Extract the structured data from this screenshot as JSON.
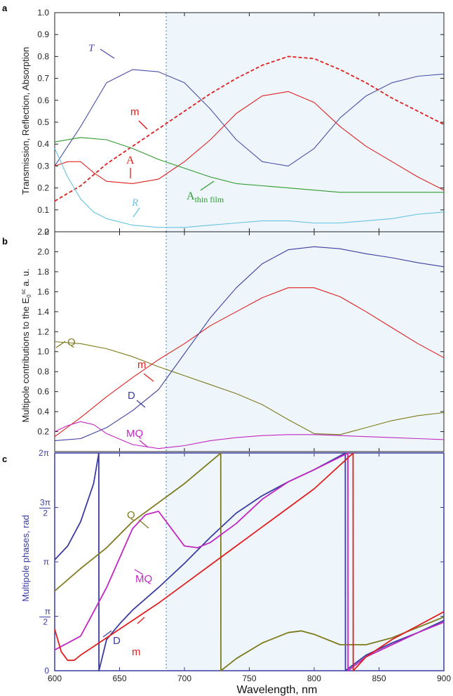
{
  "figure": {
    "x_ticks": [
      "600",
      "650",
      "700",
      "750",
      "800",
      "850",
      "900"
    ],
    "xlabel": "Wavelength, nm",
    "highlight_start": 686,
    "highlight_color": "#eef6fb",
    "marker_color": "#6aa8d8"
  },
  "chart_data": [
    {
      "panel": "a",
      "type": "line",
      "ylabel": "Transmission, Reflection, Absorption",
      "xlim": [
        600,
        900
      ],
      "ylim": [
        0,
        1.0
      ],
      "y_ticks": [
        "0",
        "0.1",
        "0.2",
        "0.3",
        "0.4",
        "0.5",
        "0.6",
        "0.7",
        "0.8",
        "0.9",
        "1.0"
      ],
      "y_tick_values": [
        0,
        0.1,
        0.2,
        0.3,
        0.4,
        0.5,
        0.6,
        0.7,
        0.8,
        0.9,
        1.0
      ],
      "series": [
        {
          "name": "T",
          "color": "#4a4fa8",
          "dash": false,
          "x": [
            600,
            620,
            640,
            660,
            680,
            700,
            720,
            740,
            760,
            780,
            800,
            820,
            840,
            860,
            880,
            900
          ],
          "y": [
            0.3,
            0.48,
            0.68,
            0.74,
            0.73,
            0.68,
            0.56,
            0.42,
            0.32,
            0.3,
            0.38,
            0.52,
            0.62,
            0.68,
            0.71,
            0.72
          ]
        },
        {
          "name": "m",
          "color": "#e02020",
          "dash": true,
          "x": [
            600,
            620,
            640,
            660,
            680,
            700,
            720,
            740,
            760,
            780,
            800,
            820,
            840,
            860,
            880,
            900
          ],
          "y": [
            0.14,
            0.21,
            0.31,
            0.39,
            0.47,
            0.55,
            0.63,
            0.7,
            0.76,
            0.8,
            0.79,
            0.74,
            0.68,
            0.61,
            0.55,
            0.49
          ]
        },
        {
          "name": "A",
          "color": "#e02020",
          "dash": false,
          "x": [
            600,
            610,
            620,
            630,
            640,
            660,
            680,
            700,
            720,
            740,
            760,
            780,
            800,
            820,
            840,
            860,
            880,
            900
          ],
          "y": [
            0.3,
            0.32,
            0.32,
            0.27,
            0.23,
            0.22,
            0.24,
            0.32,
            0.42,
            0.54,
            0.62,
            0.64,
            0.59,
            0.48,
            0.39,
            0.32,
            0.25,
            0.19
          ]
        },
        {
          "name": "A thin film",
          "color": "#2e9a2e",
          "dash": false,
          "x": [
            600,
            620,
            640,
            660,
            680,
            700,
            720,
            740,
            760,
            780,
            800,
            820,
            840,
            860,
            880,
            900
          ],
          "y": [
            0.41,
            0.43,
            0.42,
            0.38,
            0.33,
            0.29,
            0.25,
            0.22,
            0.21,
            0.2,
            0.19,
            0.18,
            0.18,
            0.18,
            0.18,
            0.18
          ]
        },
        {
          "name": "R",
          "color": "#66c2e0",
          "dash": false,
          "x": [
            600,
            610,
            620,
            630,
            640,
            660,
            680,
            700,
            720,
            740,
            760,
            780,
            800,
            820,
            840,
            860,
            880,
            900
          ],
          "y": [
            0.38,
            0.25,
            0.15,
            0.09,
            0.06,
            0.03,
            0.02,
            0.02,
            0.03,
            0.04,
            0.05,
            0.05,
            0.04,
            0.04,
            0.05,
            0.06,
            0.08,
            0.09
          ]
        }
      ]
    },
    {
      "panel": "b",
      "type": "line",
      "ylabel": "Multipole contributions to the E",
      "ylabel_sub": "0",
      "ylabel_sup": "sc",
      "ylabel_tail": " a. u.",
      "xlim": [
        600,
        900
      ],
      "ylim": [
        0,
        2.2
      ],
      "y_ticks": [
        "0.2",
        "0.4",
        "0.6",
        "0.8",
        "1.0",
        "1.2",
        "1.4",
        "1.6",
        "1.8",
        "2.0",
        "2.2"
      ],
      "y_tick_values": [
        0.2,
        0.4,
        0.6,
        0.8,
        1.0,
        1.2,
        1.4,
        1.6,
        1.8,
        2.0,
        2.2
      ],
      "series": [
        {
          "name": "Q",
          "color": "#7d7a1c",
          "dash": false,
          "x": [
            600,
            620,
            640,
            660,
            680,
            700,
            720,
            740,
            760,
            780,
            800,
            820,
            840,
            860,
            880,
            900
          ],
          "y": [
            1.1,
            1.08,
            1.03,
            0.95,
            0.85,
            0.76,
            0.67,
            0.58,
            0.47,
            0.32,
            0.18,
            0.17,
            0.24,
            0.31,
            0.36,
            0.39
          ]
        },
        {
          "name": "m",
          "color": "#e02020",
          "dash": false,
          "x": [
            600,
            620,
            640,
            660,
            680,
            700,
            720,
            740,
            760,
            780,
            800,
            820,
            840,
            860,
            880,
            900
          ],
          "y": [
            0.15,
            0.34,
            0.55,
            0.74,
            0.92,
            1.08,
            1.26,
            1.4,
            1.54,
            1.64,
            1.64,
            1.55,
            1.4,
            1.24,
            1.08,
            0.94
          ]
        },
        {
          "name": "D",
          "color": "#3b3ca0",
          "dash": false,
          "x": [
            600,
            620,
            640,
            660,
            680,
            700,
            720,
            740,
            760,
            780,
            800,
            820,
            840,
            860,
            880,
            900
          ],
          "y": [
            0.11,
            0.13,
            0.24,
            0.41,
            0.62,
            0.98,
            1.34,
            1.64,
            1.88,
            2.02,
            2.05,
            2.03,
            1.98,
            1.94,
            1.89,
            1.85
          ]
        },
        {
          "name": "MQ",
          "color": "#c028c0",
          "dash": false,
          "x": [
            600,
            610,
            620,
            630,
            640,
            660,
            680,
            700,
            720,
            740,
            760,
            780,
            800,
            820,
            840,
            860,
            880,
            900
          ],
          "y": [
            0.2,
            0.26,
            0.3,
            0.27,
            0.18,
            0.07,
            0.03,
            0.06,
            0.11,
            0.14,
            0.16,
            0.17,
            0.17,
            0.16,
            0.15,
            0.14,
            0.13,
            0.12
          ]
        }
      ]
    },
    {
      "panel": "c",
      "type": "line",
      "ylabel": "Multipole phases,  rad",
      "xlim": [
        600,
        900
      ],
      "ylim": [
        0,
        6.2832
      ],
      "y_ticks": [
        "0",
        "π/2",
        "π",
        "3π/2",
        "2π"
      ],
      "y_tick_values": [
        0,
        1.5708,
        3.1416,
        4.7124,
        6.2832
      ],
      "series": [
        {
          "name": "D",
          "color": "#3b3ca0",
          "x": [
            600,
            610,
            620,
            630,
            634,
            634.1,
            640,
            650,
            660,
            680,
            700,
            720,
            740,
            760,
            780,
            800,
            824,
            824.1,
            840,
            860,
            880,
            900
          ],
          "y": [
            3.2,
            3.6,
            4.3,
            5.4,
            6.28,
            0.0,
            0.9,
            1.35,
            1.75,
            2.4,
            3.1,
            3.85,
            4.55,
            5.05,
            5.45,
            5.8,
            6.28,
            0.0,
            0.45,
            0.8,
            1.1,
            1.45
          ]
        },
        {
          "name": "Q",
          "color": "#7d7a1c",
          "x": [
            600,
            620,
            640,
            660,
            680,
            700,
            728,
            728.1,
            740,
            760,
            780,
            790,
            800,
            820,
            840,
            860,
            880,
            900
          ],
          "y": [
            2.3,
            2.95,
            3.55,
            4.3,
            4.85,
            5.4,
            6.28,
            0.0,
            0.35,
            0.8,
            1.1,
            1.15,
            1.05,
            0.75,
            0.75,
            0.95,
            1.25,
            1.55
          ]
        },
        {
          "name": "MQ",
          "color": "#c028c0",
          "x": [
            600,
            620,
            640,
            660,
            670,
            680,
            690,
            700,
            710,
            720,
            740,
            760,
            780,
            800,
            826,
            826.1,
            840,
            860,
            880,
            900
          ],
          "y": [
            0.6,
            1.0,
            2.4,
            4.1,
            4.5,
            4.6,
            4.1,
            3.6,
            3.55,
            3.7,
            4.25,
            4.95,
            5.45,
            5.8,
            6.28,
            0.0,
            0.4,
            0.75,
            1.1,
            1.4
          ]
        },
        {
          "name": "m",
          "color": "#e02020",
          "x": [
            600,
            605,
            610,
            615,
            620,
            630,
            640,
            660,
            680,
            700,
            720,
            740,
            760,
            780,
            800,
            830,
            830.1,
            840,
            860,
            880,
            900
          ],
          "y": [
            1.2,
            0.55,
            0.3,
            0.3,
            0.45,
            0.7,
            0.95,
            1.45,
            1.95,
            2.5,
            3.05,
            3.6,
            4.15,
            4.7,
            5.25,
            6.28,
            0.0,
            0.4,
            0.9,
            1.3,
            1.7
          ]
        }
      ]
    }
  ]
}
